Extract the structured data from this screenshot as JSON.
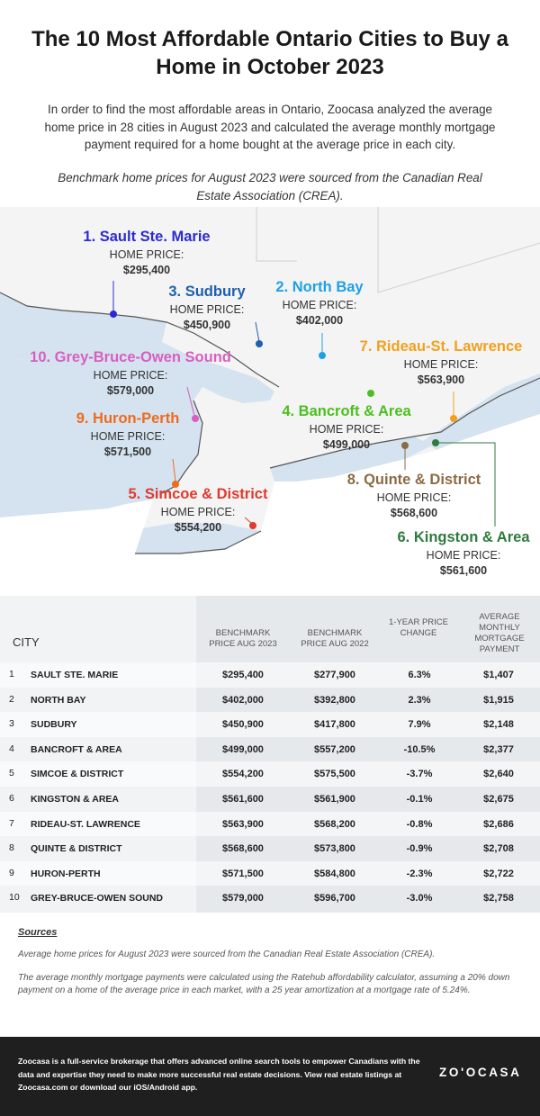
{
  "title": "The 10 Most Affordable Ontario Cities to Buy a Home in October 2023",
  "intro": "In order to find the most affordable areas in Ontario, Zoocasa analyzed the average home price in 28 cities in August 2023 and calculated the average monthly mortgage payment required for a home bought at the average price in each city.",
  "benchmark_note": "Benchmark home prices for August 2023 were sourced from the Canadian Real Estate Association (CREA).",
  "map": {
    "home_price_label": "HOME PRICE:",
    "labels": [
      {
        "city": "1. Sault Ste. Marie",
        "price": "$295,400",
        "color": "#2b2bd0"
      },
      {
        "city": "2. North Bay",
        "price": "$402,000",
        "color": "#1ea0e6"
      },
      {
        "city": "3. Sudbury",
        "price": "$450,900",
        "color": "#1f5fb0"
      },
      {
        "city": "4. Bancroft & Area",
        "price": "$499,000",
        "color": "#4cbf1f"
      },
      {
        "city": "5. Simcoe & District",
        "price": "$554,200",
        "color": "#e03a2e"
      },
      {
        "city": "6. Kingston & Area",
        "price": "$561,600",
        "color": "#2e7a3e"
      },
      {
        "city": "7. Rideau-St. Lawrence",
        "price": "$563,900",
        "color": "#f2a01c"
      },
      {
        "city": "8. Quinte & District",
        "price": "$568,600",
        "color": "#8b6b43"
      },
      {
        "city": "9. Huron-Perth",
        "price": "$571,500",
        "color": "#f06a1e"
      },
      {
        "city": "10. Grey-Bruce-Owen Sound",
        "price": "$579,000",
        "color": "#d85ec2"
      }
    ]
  },
  "table": {
    "headers": {
      "city": "CITY",
      "bench2023": "BENCHMARK PRICE AUG 2023",
      "bench2022": "BENCHMARK PRICE AUG 2022",
      "change": "1-YEAR PRICE CHANGE",
      "mortgage": "AVERAGE MONTHLY MORTGAGE PAYMENT"
    },
    "rows": [
      {
        "rank": "1",
        "city": "SAULT STE. MARIE",
        "p2023": "$295,400",
        "p2022": "$277,900",
        "change": "6.3%",
        "mortgage": "$1,407"
      },
      {
        "rank": "2",
        "city": "NORTH BAY",
        "p2023": "$402,000",
        "p2022": "$392,800",
        "change": "2.3%",
        "mortgage": "$1,915"
      },
      {
        "rank": "3",
        "city": "SUDBURY",
        "p2023": "$450,900",
        "p2022": "$417,800",
        "change": "7.9%",
        "mortgage": "$2,148"
      },
      {
        "rank": "4",
        "city": "BANCROFT & AREA",
        "p2023": "$499,000",
        "p2022": "$557,200",
        "change": "-10.5%",
        "mortgage": "$2,377"
      },
      {
        "rank": "5",
        "city": "SIMCOE & DISTRICT",
        "p2023": "$554,200",
        "p2022": "$575,500",
        "change": "-3.7%",
        "mortgage": "$2,640"
      },
      {
        "rank": "6",
        "city": "KINGSTON & AREA",
        "p2023": "$561,600",
        "p2022": "$561,900",
        "change": "-0.1%",
        "mortgage": "$2,675"
      },
      {
        "rank": "7",
        "city": "RIDEAU-ST. LAWRENCE",
        "p2023": "$563,900",
        "p2022": "$568,200",
        "change": "-0.8%",
        "mortgage": "$2,686"
      },
      {
        "rank": "8",
        "city": "QUINTE & DISTRICT",
        "p2023": "$568,600",
        "p2022": "$573,800",
        "change": "-0.9%",
        "mortgage": "$2,708"
      },
      {
        "rank": "9",
        "city": "HURON-PERTH",
        "p2023": "$571,500",
        "p2022": "$584,800",
        "change": "-2.3%",
        "mortgage": "$2,722"
      },
      {
        "rank": "10",
        "city": "GREY-BRUCE-OWEN SOUND",
        "p2023": "$579,000",
        "p2022": "$596,700",
        "change": "-3.0%",
        "mortgage": "$2,758"
      }
    ]
  },
  "sources": {
    "heading": "Sources",
    "line1": "Average home prices for August 2023 were sourced from the Canadian Real Estate Association (CREA).",
    "line2": "The average monthly mortgage payments were calculated using the Ratehub affordability calculator, assuming a 20% down payment on a home of the average price in each market, with a 25 year amortization at a mortgage rate of 5.24%."
  },
  "footer": {
    "text": "Zoocasa is a full-service brokerage that offers advanced online search tools to empower Canadians with the data and expertise they need to make more successful real estate decisions. View real estate listings at Zoocasa.com or download our iOS/Android app.",
    "logo": "ZO'OCASA"
  }
}
